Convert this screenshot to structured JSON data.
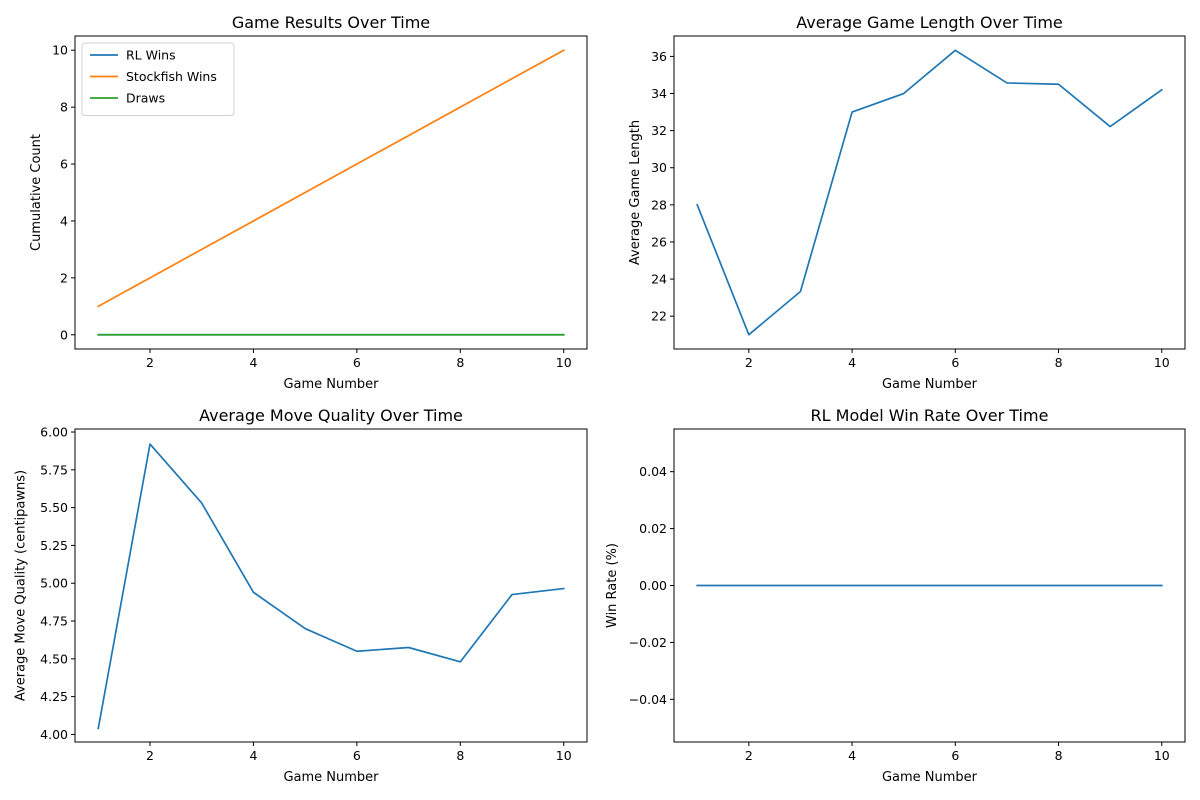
{
  "colors": {
    "blue": "#1f77b4",
    "orange": "#ff7f0e",
    "green": "#2ca02c"
  },
  "chart_data": [
    {
      "type": "line",
      "title": "Game Results Over Time",
      "xlabel": "Game Number",
      "ylabel": "Cumulative Count",
      "xlim": [
        0.55,
        10.45
      ],
      "ylim": [
        -0.5,
        10.5
      ],
      "xticks": [
        2,
        4,
        6,
        8,
        10
      ],
      "yticks": [
        0,
        2,
        4,
        6,
        8,
        10
      ],
      "grid": false,
      "legend": "top-left",
      "x": [
        1,
        2,
        3,
        4,
        5,
        6,
        7,
        8,
        9,
        10
      ],
      "series": [
        {
          "name": "RL Wins",
          "color": "#1f77b4",
          "values": [
            0,
            0,
            0,
            0,
            0,
            0,
            0,
            0,
            0,
            0
          ]
        },
        {
          "name": "Stockfish Wins",
          "color": "#ff7f0e",
          "values": [
            1,
            2,
            3,
            4,
            5,
            6,
            7,
            8,
            9,
            10
          ]
        },
        {
          "name": "Draws",
          "color": "#2ca02c",
          "values": [
            0,
            0,
            0,
            0,
            0,
            0,
            0,
            0,
            0,
            0
          ]
        }
      ]
    },
    {
      "type": "line",
      "title": "Average Game Length Over Time",
      "xlabel": "Game Number",
      "ylabel": "Average Game Length",
      "xlim": [
        0.55,
        10.45
      ],
      "ylim": [
        20.23,
        37.1
      ],
      "xticks": [
        2,
        4,
        6,
        8,
        10
      ],
      "yticks": [
        22,
        24,
        26,
        28,
        30,
        32,
        34,
        36
      ],
      "grid": false,
      "x": [
        1,
        2,
        3,
        4,
        5,
        6,
        7,
        8,
        9,
        10
      ],
      "series": [
        {
          "color": "#1f77b4",
          "values": [
            28.0,
            21.0,
            23.33,
            33.0,
            34.0,
            36.33,
            34.57,
            34.5,
            32.22,
            34.2
          ]
        }
      ]
    },
    {
      "type": "line",
      "title": "Average Move Quality Over Time",
      "xlabel": "Game Number",
      "ylabel": "Average Move Quality (centipawns)",
      "xlim": [
        0.55,
        10.45
      ],
      "ylim": [
        3.95,
        6.02
      ],
      "xticks": [
        2,
        4,
        6,
        8,
        10
      ],
      "yticks": [
        4.0,
        4.25,
        4.5,
        4.75,
        5.0,
        5.25,
        5.5,
        5.75,
        6.0
      ],
      "yticklabels": [
        "4.00",
        "4.25",
        "4.50",
        "4.75",
        "5.00",
        "5.25",
        "5.50",
        "5.75",
        "6.00"
      ],
      "grid": false,
      "x": [
        1,
        2,
        3,
        4,
        5,
        6,
        7,
        8,
        9,
        10
      ],
      "series": [
        {
          "color": "#1f77b4",
          "values": [
            4.04,
            5.92,
            5.53,
            4.94,
            4.7,
            4.55,
            4.575,
            4.48,
            4.925,
            4.965
          ]
        }
      ]
    },
    {
      "type": "line",
      "title": "RL Model Win Rate Over Time",
      "xlabel": "Game Number",
      "ylabel": "Win Rate (%)",
      "xlim": [
        0.55,
        10.45
      ],
      "ylim": [
        -0.055,
        0.055
      ],
      "xticks": [
        2,
        4,
        6,
        8,
        10
      ],
      "yticks": [
        -0.04,
        -0.02,
        0.0,
        0.02,
        0.04
      ],
      "yticklabels": [
        "−0.04",
        "−0.02",
        "0.00",
        "0.02",
        "0.04"
      ],
      "grid": false,
      "x": [
        1,
        2,
        3,
        4,
        5,
        6,
        7,
        8,
        9,
        10
      ],
      "series": [
        {
          "color": "#1f77b4",
          "values": [
            0,
            0,
            0,
            0,
            0,
            0,
            0,
            0,
            0,
            0
          ]
        }
      ]
    }
  ]
}
